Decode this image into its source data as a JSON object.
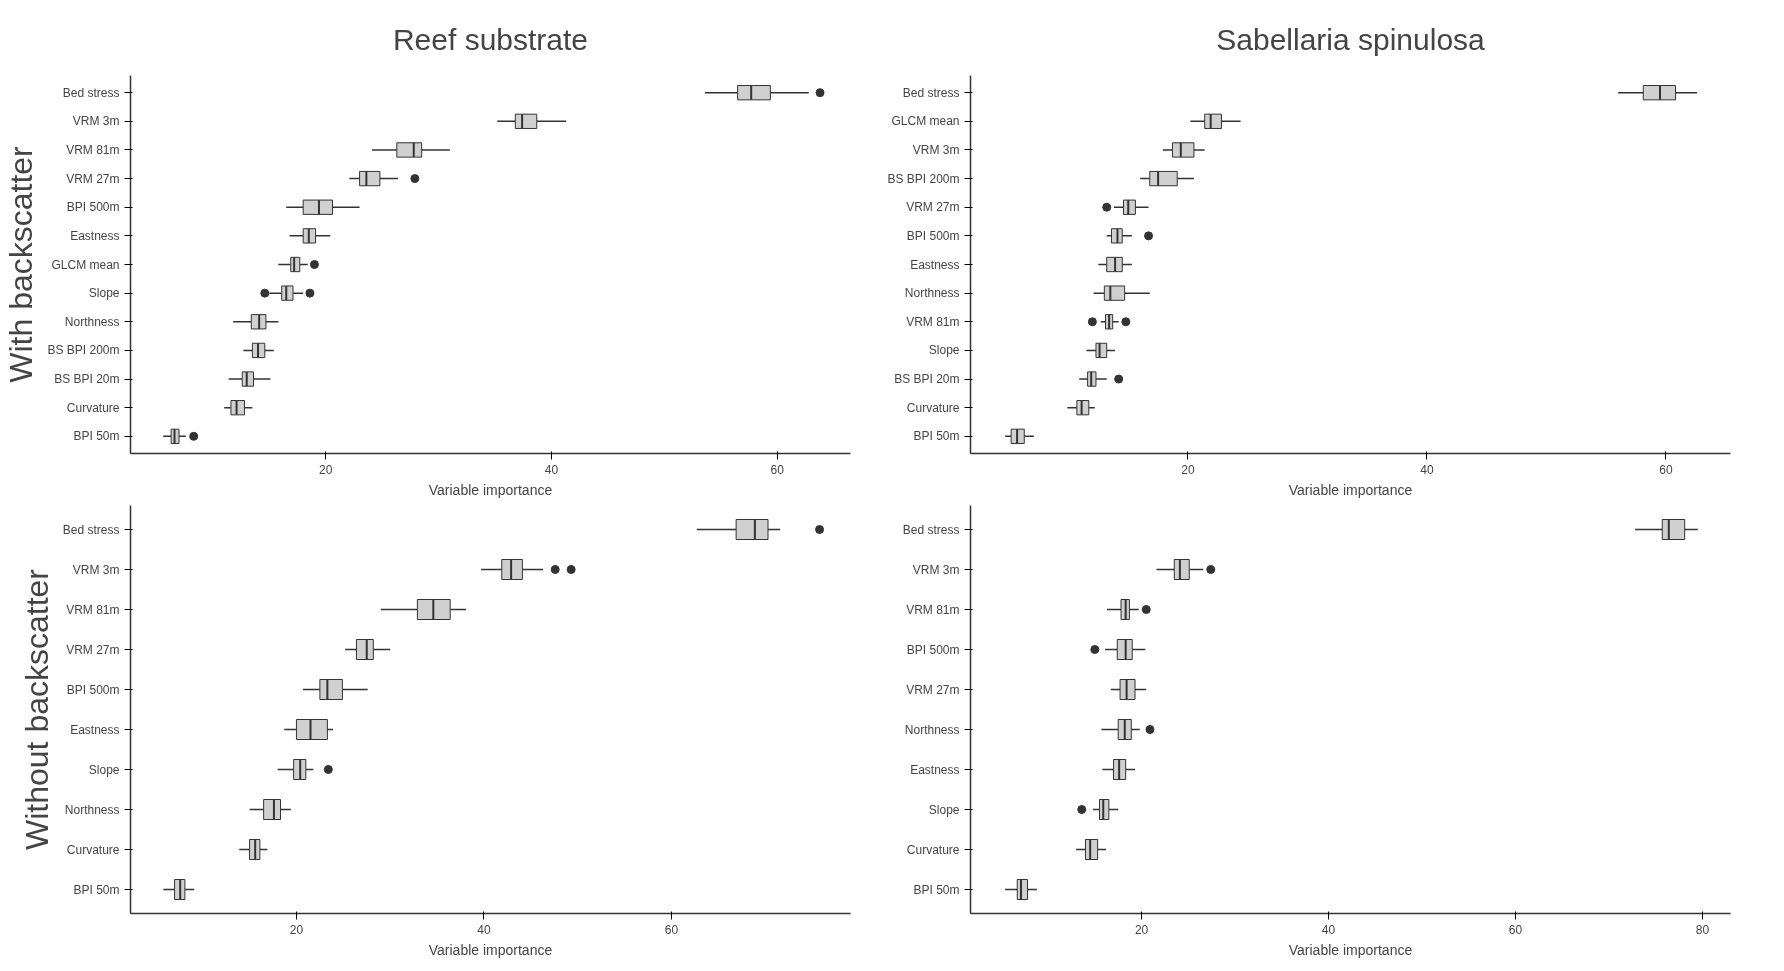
{
  "chart_data": [
    {
      "type": "box",
      "orientation": "horizontal",
      "title": "Reef substrate",
      "ylabel": "With backscatter",
      "xlabel": "Variable importance",
      "color": "#d0d0d0",
      "grid": false,
      "xlim": [
        2.7,
        66.5
      ],
      "xticks": [
        20,
        40,
        60
      ],
      "categories": [
        "Bed stress",
        "VRM 3m",
        "VRM 81m",
        "VRM 27m",
        "BPI 500m",
        "Eastness",
        "GLCM mean",
        "Slope",
        "Northness",
        "BS BPI 200m",
        "BS BPI 20m",
        "Curvature",
        "BPI 50m"
      ],
      "boxes": [
        {
          "low": 53.6,
          "q1": 56.5,
          "median": 57.7,
          "q3": 59.4,
          "high": 62.8,
          "outliers": [
            63.8
          ]
        },
        {
          "low": 35.2,
          "q1": 36.8,
          "median": 37.4,
          "q3": 38.7,
          "high": 41.3
        },
        {
          "low": 24.1,
          "q1": 26.3,
          "median": 27.8,
          "q3": 28.5,
          "high": 31.0
        },
        {
          "low": 22.1,
          "q1": 23.0,
          "median": 23.6,
          "q3": 24.8,
          "high": 26.4,
          "outliers": [
            27.9
          ]
        },
        {
          "low": 16.5,
          "q1": 18.0,
          "median": 19.4,
          "q3": 20.6,
          "high": 23.0
        },
        {
          "low": 16.8,
          "q1": 18.0,
          "median": 18.5,
          "q3": 19.1,
          "high": 20.4
        },
        {
          "low": 15.8,
          "q1": 16.9,
          "median": 17.2,
          "q3": 17.7,
          "high": 18.4,
          "outliers": [
            19.0
          ]
        },
        {
          "low": 15.0,
          "q1": 16.1,
          "median": 16.5,
          "q3": 17.1,
          "high": 18.0,
          "outliers": [
            14.6,
            18.6
          ]
        },
        {
          "low": 11.8,
          "q1": 13.4,
          "median": 14.1,
          "q3": 14.7,
          "high": 15.8
        },
        {
          "low": 12.7,
          "q1": 13.5,
          "median": 14.0,
          "q3": 14.6,
          "high": 15.4
        },
        {
          "low": 11.4,
          "q1": 12.6,
          "median": 13.0,
          "q3": 13.6,
          "high": 15.1
        },
        {
          "low": 11.0,
          "q1": 11.6,
          "median": 12.1,
          "q3": 12.8,
          "high": 13.5
        },
        {
          "low": 5.6,
          "q1": 6.3,
          "median": 6.6,
          "q3": 7.0,
          "high": 7.6,
          "outliers": [
            8.3
          ]
        }
      ]
    },
    {
      "type": "box",
      "orientation": "horizontal",
      "title": "Sabellaria spinulosa",
      "xlabel": "Variable importance",
      "color": "#d0d0d0",
      "grid": false,
      "xlim": [
        1.8,
        65.4
      ],
      "xticks": [
        20,
        40,
        60
      ],
      "categories": [
        "Bed stress",
        "GLCM mean",
        "VRM 3m",
        "BS BPI 200m",
        "VRM 27m",
        "BPI 500m",
        "Eastness",
        "Northness",
        "VRM 81m",
        "Slope",
        "BS BPI 20m",
        "Curvature",
        "BPI 50m"
      ],
      "boxes": [
        {
          "low": 56.0,
          "q1": 58.1,
          "median": 59.5,
          "q3": 60.8,
          "high": 62.6
        },
        {
          "low": 20.2,
          "q1": 21.4,
          "median": 21.9,
          "q3": 22.8,
          "high": 24.4
        },
        {
          "low": 17.9,
          "q1": 18.7,
          "median": 19.4,
          "q3": 20.5,
          "high": 21.4
        },
        {
          "low": 16.0,
          "q1": 16.8,
          "median": 17.5,
          "q3": 19.1,
          "high": 20.5
        },
        {
          "low": 13.8,
          "q1": 14.6,
          "median": 15.0,
          "q3": 15.6,
          "high": 16.7,
          "outliers": [
            13.2
          ]
        },
        {
          "low": 13.2,
          "q1": 13.6,
          "median": 14.1,
          "q3": 14.5,
          "high": 15.3,
          "outliers": [
            16.7
          ]
        },
        {
          "low": 12.5,
          "q1": 13.2,
          "median": 13.9,
          "q3": 14.5,
          "high": 15.3
        },
        {
          "low": 12.1,
          "q1": 13.0,
          "median": 13.5,
          "q3": 14.7,
          "high": 16.8
        },
        {
          "low": 12.7,
          "q1": 13.1,
          "median": 13.4,
          "q3": 13.7,
          "high": 14.2,
          "outliers": [
            12.0,
            14.8
          ]
        },
        {
          "low": 11.5,
          "q1": 12.3,
          "median": 12.6,
          "q3": 13.2,
          "high": 13.9
        },
        {
          "low": 10.9,
          "q1": 11.6,
          "median": 11.9,
          "q3": 12.3,
          "high": 13.2,
          "outliers": [
            14.2
          ]
        },
        {
          "low": 9.9,
          "q1": 10.7,
          "median": 11.1,
          "q3": 11.7,
          "high": 12.2
        },
        {
          "low": 4.7,
          "q1": 5.2,
          "median": 5.7,
          "q3": 6.3,
          "high": 7.1
        }
      ]
    },
    {
      "type": "box",
      "orientation": "horizontal",
      "ylabel": "Without backscatter",
      "xlabel": "Variable importance",
      "color": "#d0d0d0",
      "grid": false,
      "xlim": [
        2.3,
        79.1
      ],
      "xticks": [
        20,
        40,
        60
      ],
      "categories": [
        "Bed stress",
        "VRM 3m",
        "VRM 81m",
        "VRM 27m",
        "BPI 500m",
        "Eastness",
        "Slope",
        "Northness",
        "Curvature",
        "BPI 50m"
      ],
      "boxes": [
        {
          "low": 62.7,
          "q1": 66.9,
          "median": 68.9,
          "q3": 70.3,
          "high": 71.6,
          "outliers": [
            75.8
          ]
        },
        {
          "low": 39.7,
          "q1": 41.9,
          "median": 42.9,
          "q3": 44.1,
          "high": 46.3,
          "outliers": [
            47.6,
            49.3
          ]
        },
        {
          "low": 29.0,
          "q1": 32.9,
          "median": 34.6,
          "q3": 36.4,
          "high": 38.1
        },
        {
          "low": 25.2,
          "q1": 26.4,
          "median": 27.5,
          "q3": 28.2,
          "high": 30.0
        },
        {
          "low": 20.7,
          "q1": 22.5,
          "median": 23.3,
          "q3": 24.9,
          "high": 27.6
        },
        {
          "low": 18.7,
          "q1": 20.0,
          "median": 21.5,
          "q3": 23.3,
          "high": 23.9
        },
        {
          "low": 18.0,
          "q1": 19.7,
          "median": 20.4,
          "q3": 21.0,
          "high": 21.8,
          "outliers": [
            23.4
          ]
        },
        {
          "low": 15.0,
          "q1": 16.5,
          "median": 17.6,
          "q3": 18.3,
          "high": 19.4
        },
        {
          "low": 13.9,
          "q1": 15.0,
          "median": 15.6,
          "q3": 16.1,
          "high": 16.9
        },
        {
          "low": 5.8,
          "q1": 7.0,
          "median": 7.6,
          "q3": 8.1,
          "high": 9.1
        }
      ]
    },
    {
      "type": "box",
      "orientation": "horizontal",
      "xlabel": "Variable importance",
      "color": "#d0d0d0",
      "grid": false,
      "xlim": [
        1.7,
        83.0
      ],
      "xticks": [
        20,
        40,
        60,
        80
      ],
      "categories": [
        "Bed stress",
        "VRM 3m",
        "VRM 81m",
        "BPI 500m",
        "VRM 27m",
        "Northness",
        "Eastness",
        "Slope",
        "Curvature",
        "BPI 50m"
      ],
      "boxes": [
        {
          "low": 72.8,
          "q1": 75.7,
          "median": 76.4,
          "q3": 78.1,
          "high": 79.5
        },
        {
          "low": 21.6,
          "q1": 23.5,
          "median": 24.1,
          "q3": 25.1,
          "high": 26.6,
          "outliers": [
            27.4
          ]
        },
        {
          "low": 16.3,
          "q1": 17.8,
          "median": 18.3,
          "q3": 18.7,
          "high": 19.7,
          "outliers": [
            20.5
          ]
        },
        {
          "low": 16.1,
          "q1": 17.4,
          "median": 18.3,
          "q3": 19.0,
          "high": 20.4,
          "outliers": [
            15.0
          ]
        },
        {
          "low": 16.7,
          "q1": 17.7,
          "median": 18.4,
          "q3": 19.3,
          "high": 20.5
        },
        {
          "low": 15.7,
          "q1": 17.5,
          "median": 18.2,
          "q3": 18.9,
          "high": 19.8,
          "outliers": [
            20.9
          ]
        },
        {
          "low": 15.8,
          "q1": 17.0,
          "median": 17.6,
          "q3": 18.3,
          "high": 19.3
        },
        {
          "low": 14.8,
          "q1": 15.5,
          "median": 15.9,
          "q3": 16.5,
          "high": 17.5,
          "outliers": [
            13.6
          ]
        },
        {
          "low": 13.0,
          "q1": 14.0,
          "median": 14.5,
          "q3": 15.3,
          "high": 16.2
        },
        {
          "low": 5.4,
          "q1": 6.7,
          "median": 7.1,
          "q3": 7.8,
          "high": 8.8
        }
      ]
    }
  ]
}
